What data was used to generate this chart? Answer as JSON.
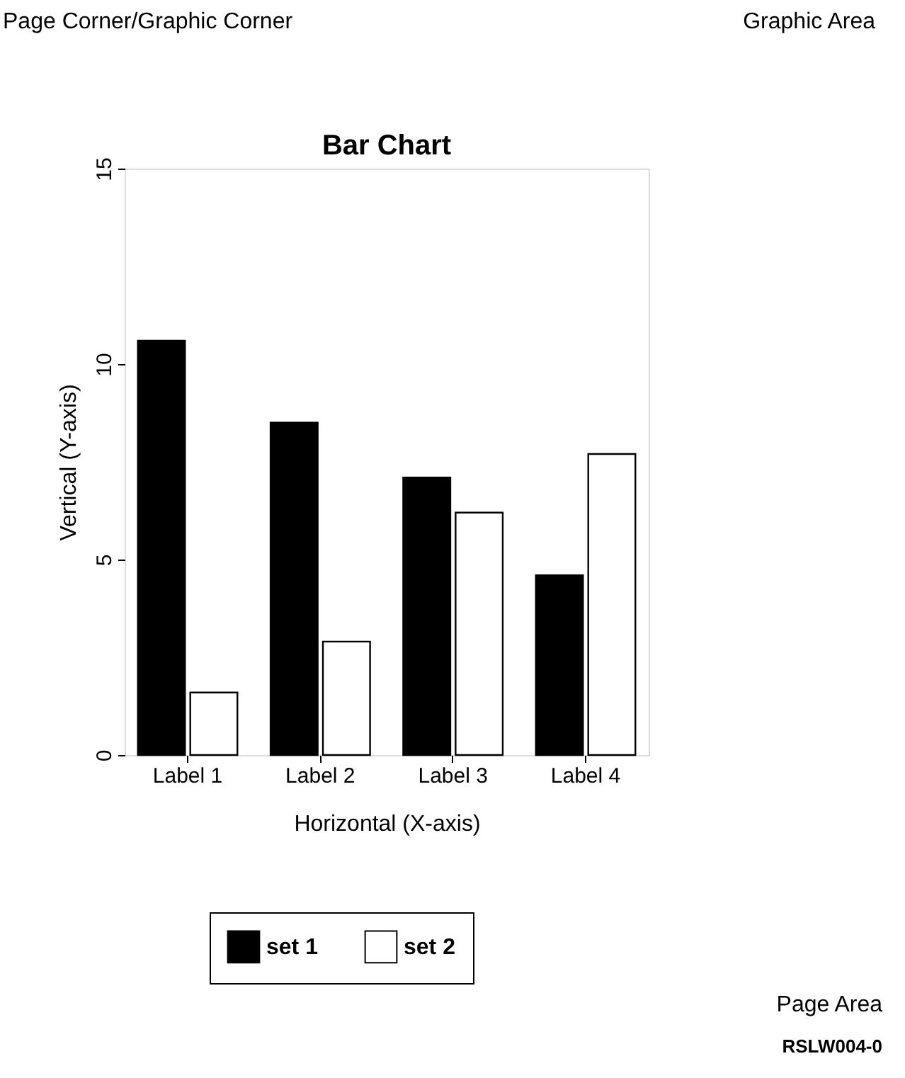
{
  "chart_data": {
    "type": "bar",
    "title": "Bar Chart",
    "xlabel": "Horizontal (X-axis)",
    "ylabel": "Vertical (Y-axis)",
    "categories": [
      "Label 1",
      "Label 2",
      "Label 3",
      "Label 4"
    ],
    "series": [
      {
        "name": "set 1",
        "color": "#000000",
        "values": [
          10.6,
          8.5,
          7.1,
          4.6
        ]
      },
      {
        "name": "set 2",
        "color": "#ffffff",
        "values": [
          1.6,
          2.9,
          6.2,
          7.7
        ]
      }
    ],
    "ylim": [
      0,
      15
    ],
    "yticks": [
      0,
      5,
      10,
      15
    ],
    "grid": false,
    "legend": "bottom",
    "annotations": [
      "Page Corner/Graphic Corner",
      "Graphic Area",
      "Page Area",
      "RSLW004-0"
    ]
  }
}
